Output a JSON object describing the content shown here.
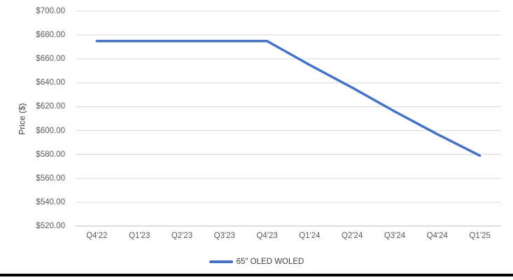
{
  "chart_data": {
    "type": "line",
    "title": "",
    "xlabel": "",
    "ylabel": "Price ($)",
    "ylim": [
      520,
      700
    ],
    "ytick_step": 20,
    "ytick_labels": [
      "$700.00",
      "$680.00",
      "$660.00",
      "$640.00",
      "$620.00",
      "$600.00",
      "$580.00",
      "$560.00",
      "$540.00",
      "$520.00"
    ],
    "categories": [
      "Q4'22",
      "Q1'23",
      "Q2'23",
      "Q3'23",
      "Q4'23",
      "Q1'24",
      "Q2'24",
      "Q3'24",
      "Q4'24",
      "Q1'25"
    ],
    "series": [
      {
        "name": "65\" OLED WOLED",
        "values": [
          675,
          675,
          675,
          675,
          675,
          655,
          636,
          616,
          597,
          579
        ],
        "color": "#4472C4"
      }
    ],
    "grid": true,
    "legend_position": "bottom"
  },
  "legend": {
    "label": "65\" OLED WOLED"
  },
  "colors": {
    "line": "#4472C4",
    "gridline": "#D9D9D9",
    "axis_line": "#BFBFBF",
    "tick_text": "#595959",
    "bottom_bar": "#000000"
  }
}
